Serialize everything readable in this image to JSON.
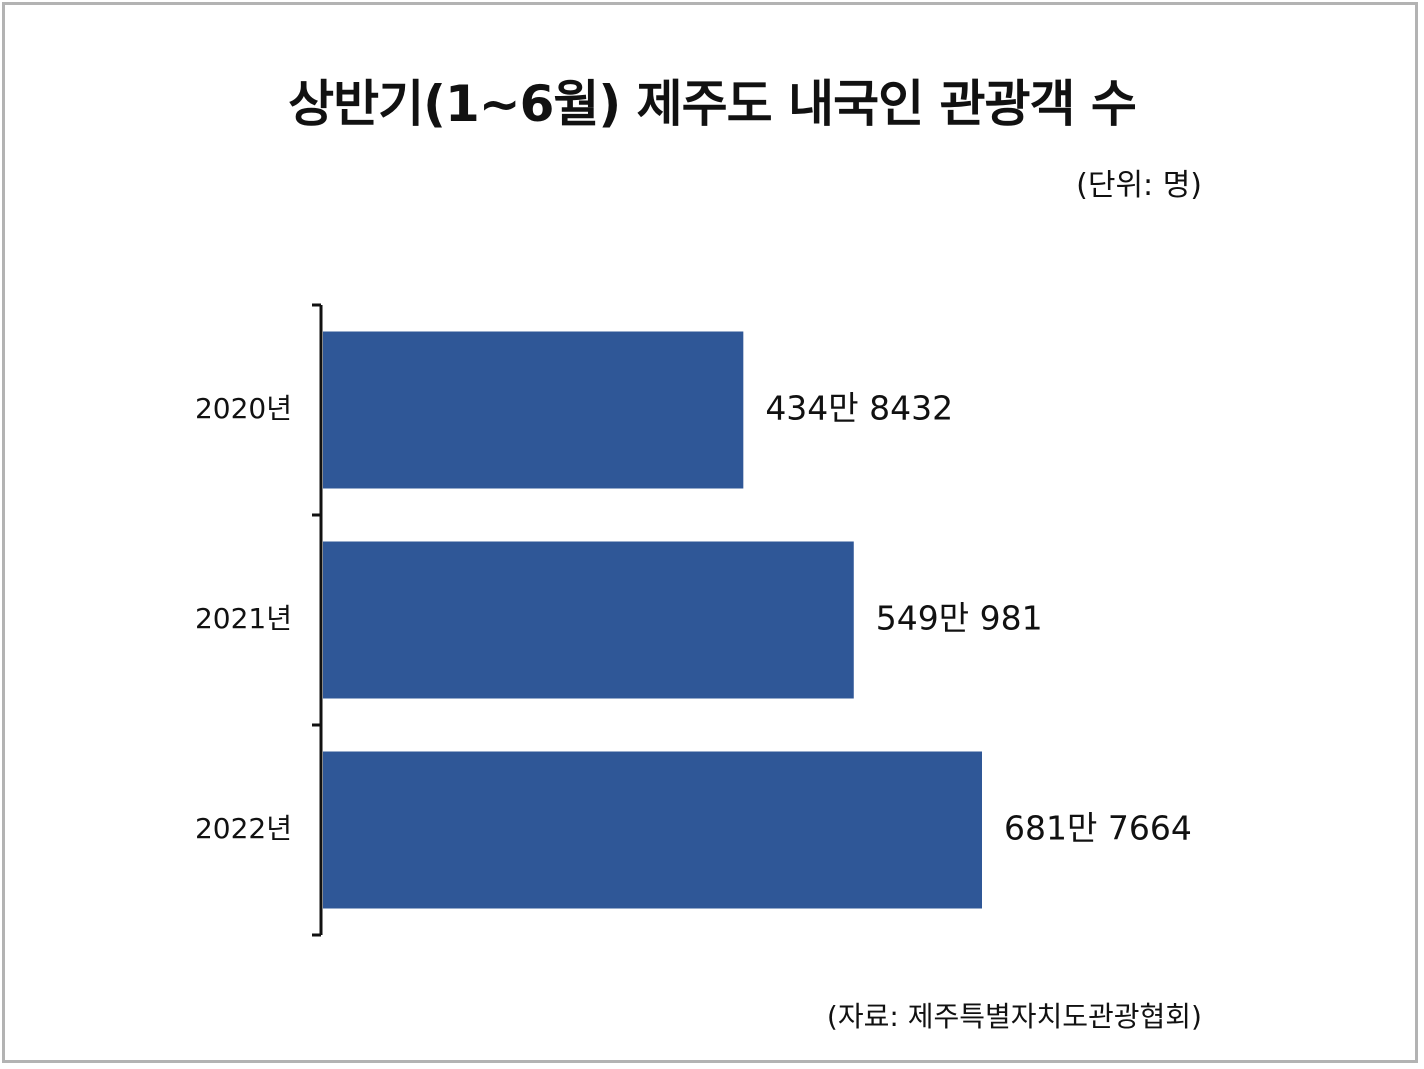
{
  "title": "상반기(1~6월) 제주도 내국인 관광객 수",
  "unit": "(단위: 명)",
  "source": "(자료: 제주특별자치도관광협회)",
  "colors": {
    "bar": "#2f5797",
    "axis": "#111111",
    "frame": "#b3b3b3"
  },
  "chart_data": {
    "type": "bar",
    "orientation": "horizontal",
    "categories": [
      "2020년",
      "2021년",
      "2022년"
    ],
    "values": [
      4348432,
      5490981,
      6817664
    ],
    "value_labels": [
      "434만 8432",
      "549만 981",
      "681만 7664"
    ],
    "xlim": [
      0,
      6817664
    ],
    "grid": false,
    "legend": "none"
  }
}
